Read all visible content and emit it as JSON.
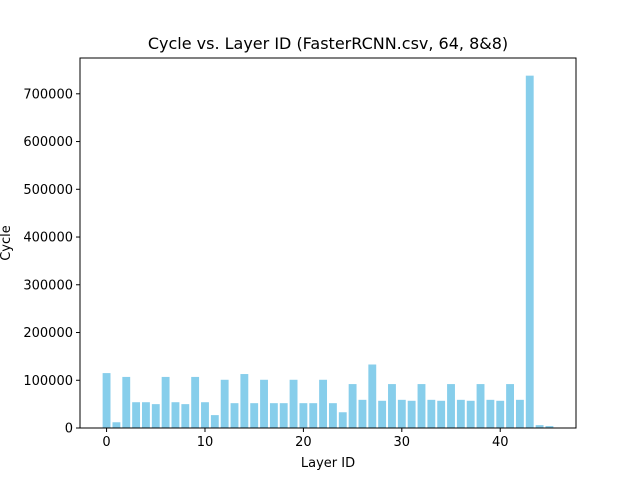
{
  "chart_data": {
    "type": "bar",
    "title": "Cycle vs. Layer ID (FasterRCNN.csv, 64, 8&8)",
    "xlabel": "Layer ID",
    "ylabel": "Cycle",
    "xlim": [
      -2.7,
      47.7
    ],
    "ylim": [
      0,
      775000
    ],
    "xticks": [
      0,
      10,
      20,
      30,
      40
    ],
    "yticks": [
      0,
      100000,
      200000,
      300000,
      400000,
      500000,
      600000,
      700000
    ],
    "bar_color": "#87CEEB",
    "grid": false,
    "x": [
      0,
      1,
      2,
      3,
      4,
      5,
      6,
      7,
      8,
      9,
      10,
      11,
      12,
      13,
      14,
      15,
      16,
      17,
      18,
      19,
      20,
      21,
      22,
      23,
      24,
      25,
      26,
      27,
      28,
      29,
      30,
      31,
      32,
      33,
      34,
      35,
      36,
      37,
      38,
      39,
      40,
      41,
      42,
      43,
      44,
      45
    ],
    "values": [
      115000,
      12000,
      107000,
      54000,
      54000,
      50000,
      107000,
      54000,
      50000,
      107000,
      54000,
      27000,
      101000,
      52000,
      113000,
      52000,
      101000,
      52000,
      52000,
      101000,
      52000,
      52000,
      101000,
      52000,
      33000,
      92000,
      59000,
      133000,
      57000,
      92000,
      59000,
      57000,
      92000,
      59000,
      57000,
      92000,
      59000,
      57000,
      92000,
      59000,
      57000,
      92000,
      59000,
      738000,
      6000,
      4000
    ]
  }
}
